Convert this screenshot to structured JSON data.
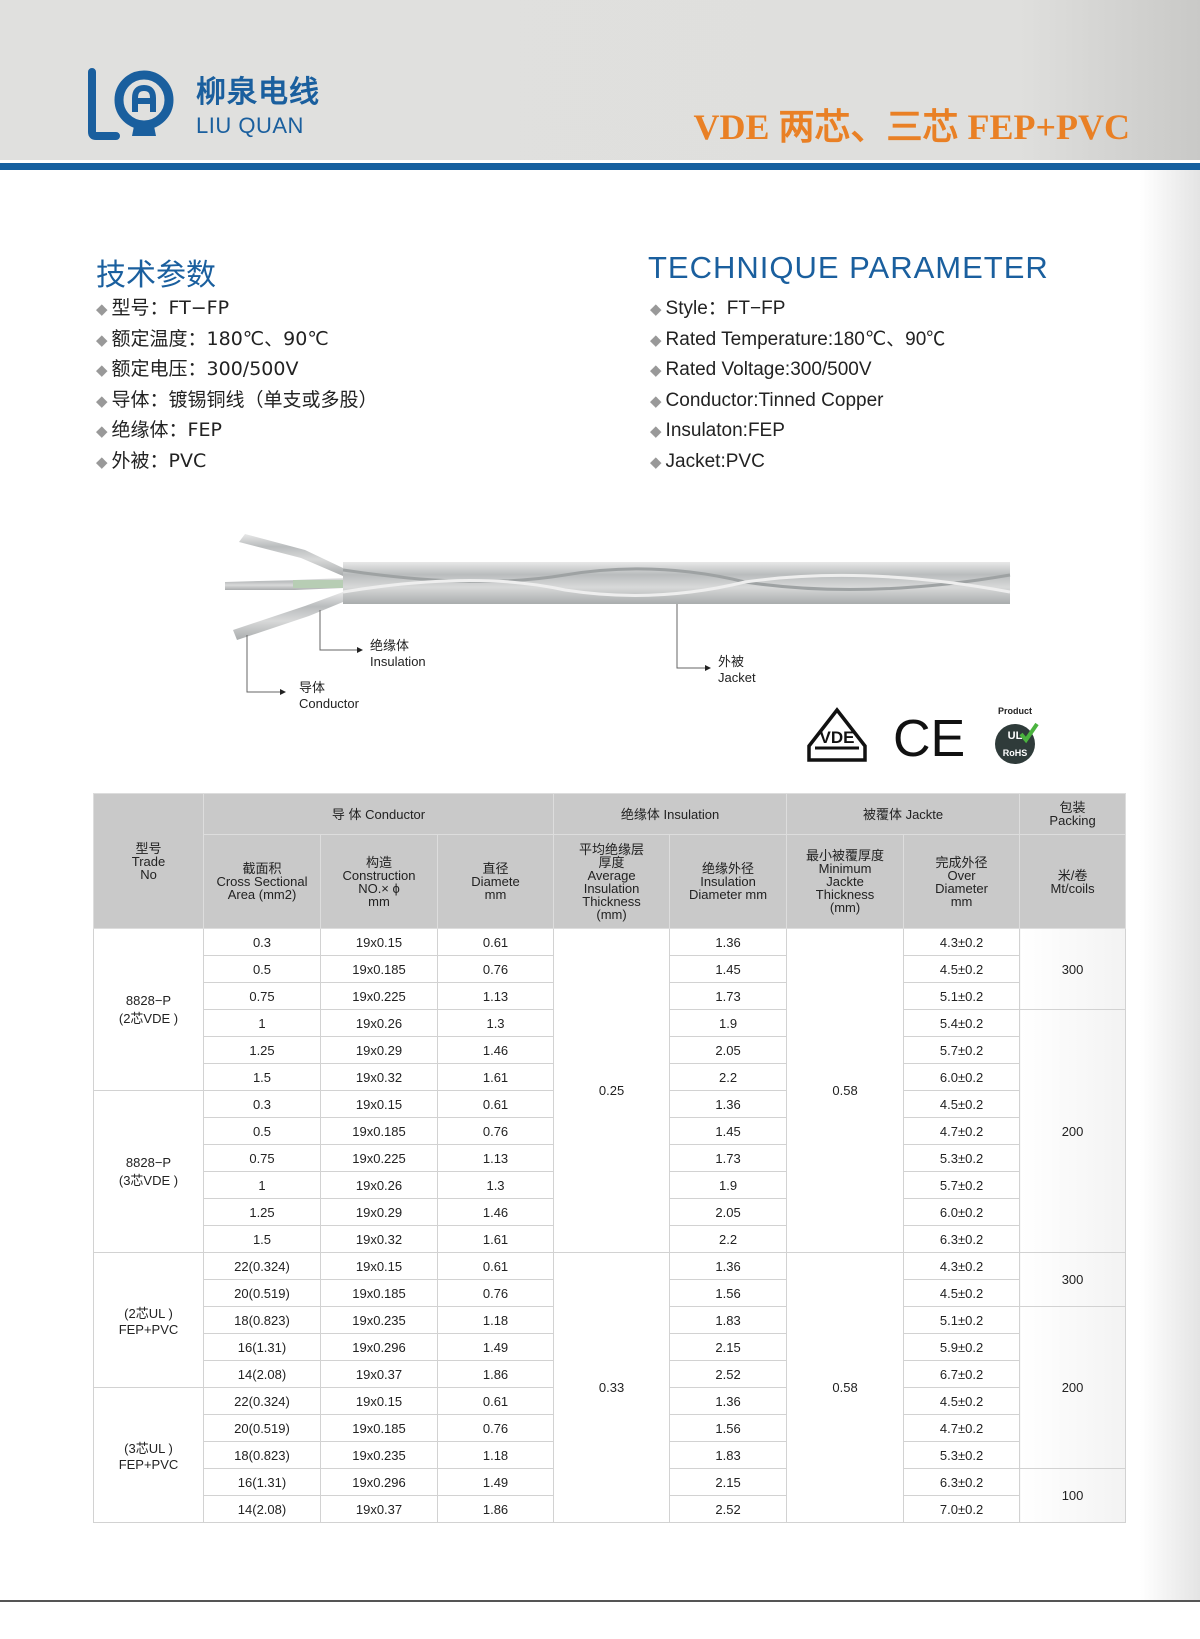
{
  "header": {
    "logo_cn": "柳泉电线",
    "logo_en": "LIU QUAN",
    "logo_mark": "LQ",
    "title": "VDE 两芯、三芯  FEP+PVC",
    "title_color": "#e98025",
    "brand_color": "#1a5f9e"
  },
  "specs_cn": {
    "heading": "技术参数",
    "items": [
      "型号：FT−FP",
      "额定温度：180℃、90℃",
      "额定电压：300/500V",
      "导体：镀锡铜线（单支或多股）",
      "绝缘体：FEP",
      "外被：PVC"
    ]
  },
  "specs_en": {
    "heading": "TECHNIQUE PARAMETER",
    "items": [
      "Style：FT−FP",
      "Rated Temperature:180℃、90℃",
      "Rated Voltage:300/500V",
      "Conductor:Tinned Copper",
      "Insulaton:FEP",
      "Jacket:PVC"
    ]
  },
  "cable_labels": {
    "insulation_cn": "绝缘体",
    "insulation_en": "Insulation",
    "conductor_cn": "导体",
    "conductor_en": "Conductor",
    "jacket_cn": "外被",
    "jacket_en": "Jacket"
  },
  "certs": {
    "vde": "VDE",
    "ce": "CE",
    "ul_top": "Product",
    "ul": "UL",
    "rohs": "RoHS"
  },
  "table": {
    "head": {
      "trade_no": "型号\nTrade\nNo",
      "conductor": "导 体  Conductor",
      "insulation": "绝缘体  Insulation",
      "jacket": "被覆体   Jackte",
      "packing": "包装\nPacking",
      "area": "截面积\nCross Sectional\nArea  (mm2)",
      "construction": "构造\nConstruction\nNO.× ϕ\nmm",
      "diameter": "直径\nDiamete\nmm",
      "ins_thickness": "平均绝缘层\n厚度\nAverage\nInsulation\nThickness\n(mm)",
      "ins_diameter": "绝缘外径\nInsulation\nDiameter mm",
      "jacket_thickness": "最小被覆厚度\nMinimum\nJackte\nThickness\n(mm)",
      "over_diameter": "完成外径\nOver\nDiameter\nmm",
      "packing_unit": "米/卷\nMt/coils"
    },
    "groups": [
      {
        "trade_no": "8828−P\n(2芯VDE )",
        "rows": [
          [
            "0.3",
            "19x0.15",
            "0.61",
            "1.36",
            "4.3±0.2"
          ],
          [
            "0.5",
            "19x0.185",
            "0.76",
            "1.45",
            "4.5±0.2"
          ],
          [
            "0.75",
            "19x0.225",
            "1.13",
            "1.73",
            "5.1±0.2"
          ],
          [
            "1",
            "19x0.26",
            "1.3",
            "1.9",
            "5.4±0.2"
          ],
          [
            "1.25",
            "19x0.29",
            "1.46",
            "2.05",
            "5.7±0.2"
          ],
          [
            "1.5",
            "19x0.32",
            "1.61",
            "2.2",
            "6.0±0.2"
          ]
        ]
      },
      {
        "trade_no": "8828−P\n(3芯VDE )",
        "rows": [
          [
            "0.3",
            "19x0.15",
            "0.61",
            "1.36",
            "4.5±0.2"
          ],
          [
            "0.5",
            "19x0.185",
            "0.76",
            "1.45",
            "4.7±0.2"
          ],
          [
            "0.75",
            "19x0.225",
            "1.13",
            "1.73",
            "5.3±0.2"
          ],
          [
            "1",
            "19x0.26",
            "1.3",
            "1.9",
            "5.7±0.2"
          ],
          [
            "1.25",
            "19x0.29",
            "1.46",
            "2.05",
            "6.0±0.2"
          ],
          [
            "1.5",
            "19x0.32",
            "1.61",
            "2.2",
            "6.3±0.2"
          ]
        ]
      },
      {
        "trade_no": "(2芯UL )\nFEP+PVC",
        "rows": [
          [
            "22(0.324)",
            "19x0.15",
            "0.61",
            "1.36",
            "4.3±0.2"
          ],
          [
            "20(0.519)",
            "19x0.185",
            "0.76",
            "1.56",
            "4.5±0.2"
          ],
          [
            "18(0.823)",
            "19x0.235",
            "1.18",
            "1.83",
            "5.1±0.2"
          ],
          [
            "16(1.31)",
            "19x0.296",
            "1.49",
            "2.15",
            "5.9±0.2"
          ],
          [
            "14(2.08)",
            "19x0.37",
            "1.86",
            "2.52",
            "6.7±0.2"
          ]
        ]
      },
      {
        "trade_no": "(3芯UL )\nFEP+PVC",
        "rows": [
          [
            "22(0.324)",
            "19x0.15",
            "0.61",
            "1.36",
            "4.5±0.2"
          ],
          [
            "20(0.519)",
            "19x0.185",
            "0.76",
            "1.56",
            "4.7±0.2"
          ],
          [
            "18(0.823)",
            "19x0.235",
            "1.18",
            "1.83",
            "5.3±0.2"
          ],
          [
            "16(1.31)",
            "19x0.296",
            "1.49",
            "2.15",
            "6.3±0.2"
          ],
          [
            "14(2.08)",
            "19x0.37",
            "1.86",
            "2.52",
            "7.0±0.2"
          ]
        ]
      }
    ],
    "ins_thickness": [
      {
        "value": "0.25",
        "rows": 12
      },
      {
        "value": "0.33",
        "rows": 10
      }
    ],
    "jacket_thickness": [
      {
        "value": "0.58",
        "rows": 12
      },
      {
        "value": "0.58",
        "rows": 10
      }
    ],
    "packing": [
      {
        "value": "300",
        "rows": 3
      },
      {
        "value": "200",
        "rows": 9
      },
      {
        "value": "300",
        "rows": 2
      },
      {
        "value": "200",
        "rows": 6
      },
      {
        "value": "100",
        "rows": 2
      }
    ]
  }
}
